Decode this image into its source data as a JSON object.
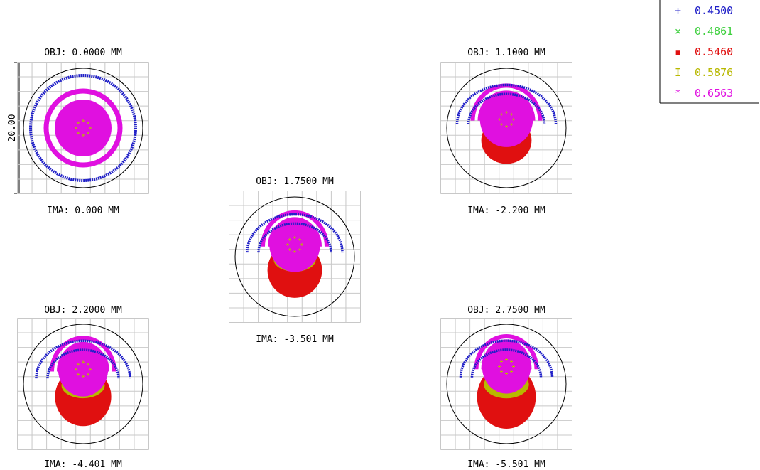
{
  "spots": [
    {
      "obj": "OBJ: 0.0000 MM",
      "ima": "IMA: 0.000 MM",
      "shift": 0.0,
      "coma": 0.0
    },
    {
      "obj": "OBJ: 1.1000 MM",
      "ima": "IMA: -2.200 MM",
      "shift": 0.22,
      "coma": 0.45
    },
    {
      "obj": "OBJ: 1.7500 MM",
      "ima": "IMA: -3.501 MM",
      "shift": 0.32,
      "coma": 0.7
    },
    {
      "obj": "OBJ: 2.2000 MM",
      "ima": "IMA: -4.401 MM",
      "shift": 0.38,
      "coma": 0.8
    },
    {
      "obj": "OBJ: 2.7500 MM",
      "ima": "IMA: -5.501 MM",
      "shift": 0.45,
      "coma": 0.95
    }
  ],
  "scale_bar": "20.00",
  "legend": [
    {
      "label": "0.4500",
      "color": "#2020c8",
      "marker": "+"
    },
    {
      "label": "0.4861",
      "color": "#3ccf3c",
      "marker": "×"
    },
    {
      "label": "0.5460",
      "color": "#e01010",
      "marker": "▪"
    },
    {
      "label": "0.5876",
      "color": "#b8b800",
      "marker": "I"
    },
    {
      "label": "0.6563",
      "color": "#e010e0",
      "marker": "*"
    }
  ]
}
